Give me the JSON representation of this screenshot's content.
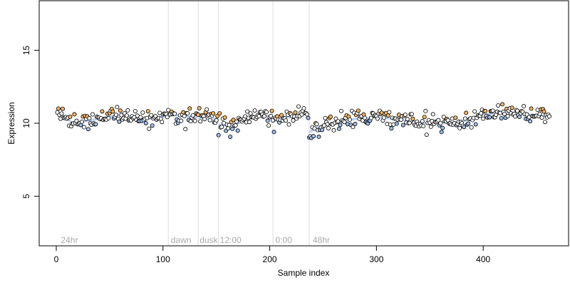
{
  "chart_data": {
    "type": "scatter",
    "title": "",
    "xlabel": "Sample index",
    "ylabel": "Expression",
    "xlim": [
      -16,
      480
    ],
    "ylim": [
      1.6,
      18.4
    ],
    "x_ticks": [
      0,
      100,
      200,
      300,
      400
    ],
    "y_ticks": [
      5,
      10,
      15
    ],
    "grid": false,
    "legend": "none",
    "colors": {
      "high_point": "#F5B562",
      "low_point": "#9DBDEB",
      "point_outline": "#000000",
      "trend_line": "#A8C4EC",
      "divider": "#DDDDDD",
      "phase_label": "#AAAAAA"
    },
    "dividers": [
      105,
      133,
      152,
      203,
      237
    ],
    "phase_labels": [
      {
        "text": "24hr",
        "x": 3
      },
      {
        "text": "dawn",
        "x": 106
      },
      {
        "text": "dusk",
        "x": 133
      },
      {
        "text": "12:00",
        "x": 152
      },
      {
        "text": "0:00",
        "x": 204
      },
      {
        "text": "48hr",
        "x": 239
      }
    ],
    "phase_label_y": 2.0,
    "segments": [
      {
        "x0": 1,
        "x1": 104,
        "base": [
          [
            1,
            10.6
          ],
          [
            8,
            10.5
          ],
          [
            15,
            10.0
          ],
          [
            25,
            10.1
          ],
          [
            40,
            10.3
          ],
          [
            60,
            10.6
          ],
          [
            75,
            10.4
          ],
          [
            90,
            10.3
          ],
          [
            104,
            10.5
          ]
        ]
      },
      {
        "x0": 105,
        "x1": 132,
        "base": [
          [
            105,
            10.6
          ],
          [
            118,
            10.5
          ],
          [
            132,
            10.4
          ]
        ]
      },
      {
        "x0": 133,
        "x1": 151,
        "base": [
          [
            133,
            10.4
          ],
          [
            142,
            10.3
          ],
          [
            151,
            10.3
          ]
        ]
      },
      {
        "x0": 152,
        "x1": 202,
        "base": [
          [
            152,
            9.9
          ],
          [
            165,
            9.8
          ],
          [
            180,
            10.3
          ],
          [
            192,
            10.6
          ],
          [
            202,
            10.4
          ]
        ]
      },
      {
        "x0": 203,
        "x1": 236,
        "base": [
          [
            203,
            10.1
          ],
          [
            215,
            10.4
          ],
          [
            225,
            10.5
          ],
          [
            236,
            10.7
          ]
        ]
      },
      {
        "x0": 237,
        "x1": 462,
        "base": [
          [
            237,
            9.4
          ],
          [
            248,
            9.8
          ],
          [
            262,
            10.0
          ],
          [
            280,
            10.3
          ],
          [
            300,
            10.4
          ],
          [
            320,
            10.3
          ],
          [
            340,
            10.0
          ],
          [
            355,
            10.1
          ],
          [
            370,
            10.0
          ],
          [
            385,
            10.2
          ],
          [
            400,
            10.6
          ],
          [
            420,
            10.7
          ],
          [
            440,
            10.6
          ],
          [
            462,
            10.5
          ]
        ]
      }
    ],
    "noise_sd": 0.28,
    "outliers": [
      [
        204,
        9.4
      ],
      [
        238,
        9.1
      ],
      [
        239,
        9.0
      ],
      [
        361,
        9.4
      ],
      [
        30,
        9.6
      ],
      [
        170,
        9.5
      ]
    ]
  }
}
